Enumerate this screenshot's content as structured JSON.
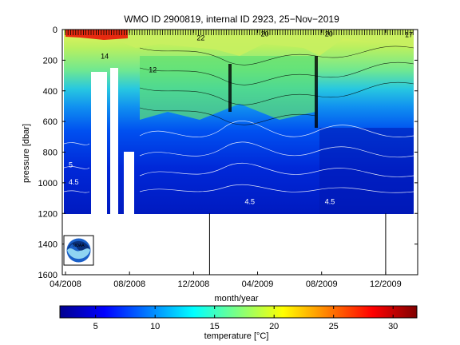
{
  "chart_data": {
    "type": "heatmap",
    "title": "WMO ID 2900819, internal ID 2923, 25−Nov−2019",
    "xlabel": "month/year",
    "ylabel": "pressure [dbar]",
    "x_ticks": [
      "04/2008",
      "08/2008",
      "12/2008",
      "04/2009",
      "08/2009",
      "12/2009"
    ],
    "y_ticks": [
      0,
      200,
      400,
      600,
      800,
      1000,
      1200,
      1400,
      1600
    ],
    "ylim": [
      0,
      1600
    ],
    "y_reversed": true,
    "xlim": [
      "2008-04",
      "2010-02"
    ],
    "colorbar": {
      "label": "temperature [°C]",
      "ticks": [
        5,
        10,
        15,
        20,
        25,
        30
      ],
      "range": [
        2,
        32
      ],
      "colormap": "jet"
    },
    "vertical_markers": [
      "2009-01",
      "2009-12"
    ],
    "max_profile_depth": 1200,
    "data_gaps": [
      {
        "start": "2008-06",
        "end": "2008-07",
        "note": "no profiles"
      },
      {
        "start": "2008-07",
        "end": "2008-09",
        "note": "partial profiles"
      }
    ],
    "contour_labels": [
      {
        "text": "14",
        "date": "2008-06",
        "pressure": 190
      },
      {
        "text": "12",
        "date": "2008-09",
        "pressure": 280
      },
      {
        "text": "22",
        "date": "2008-12",
        "pressure": 70
      },
      {
        "text": "20",
        "date": "2009-04",
        "pressure": 45
      },
      {
        "text": "20",
        "date": "2009-08",
        "pressure": 45
      },
      {
        "text": "17",
        "date": "2010-01",
        "pressure": 50
      },
      {
        "text": "5",
        "date": "2008-04",
        "pressure": 900
      },
      {
        "text": "4.5",
        "date": "2008-04",
        "pressure": 1010
      },
      {
        "text": "4.5",
        "date": "2009-03",
        "pressure": 1140
      },
      {
        "text": "4.5",
        "date": "2009-08",
        "pressure": 1140
      }
    ]
  },
  "logo": {
    "text": "NOAA"
  }
}
